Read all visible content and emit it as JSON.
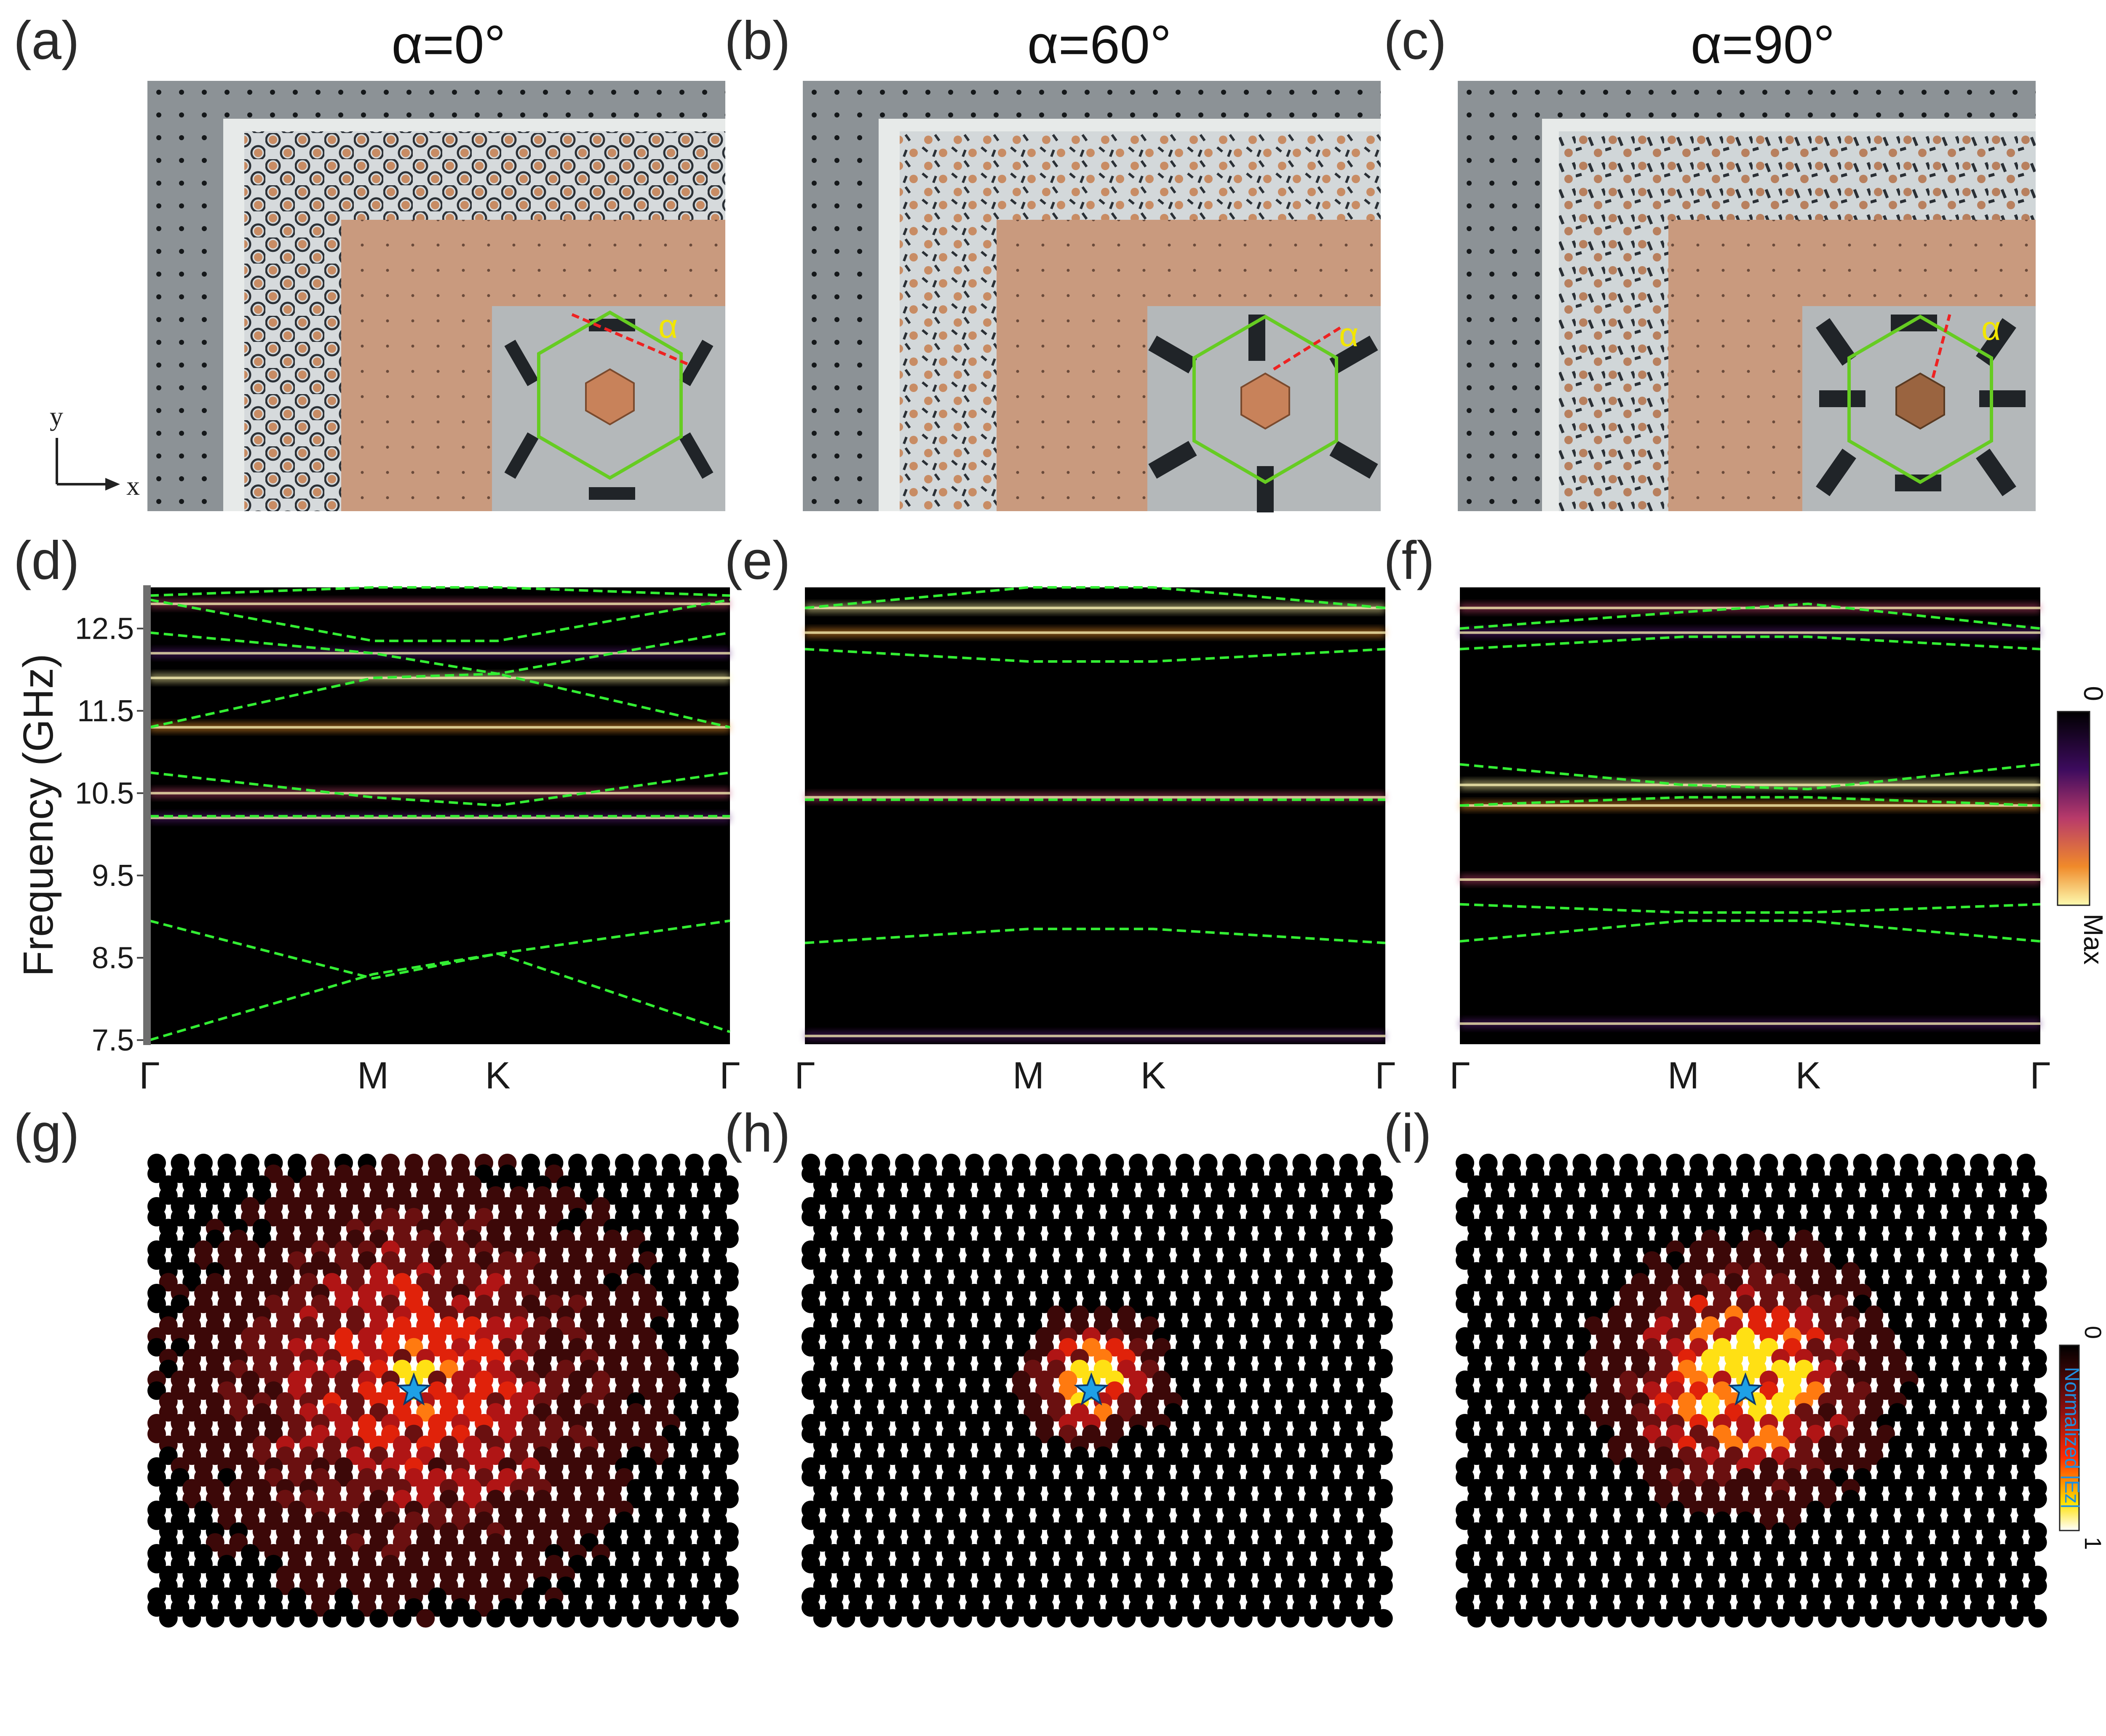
{
  "figure": {
    "panel_labels": [
      "(a)",
      "(b)",
      "(c)",
      "(d)",
      "(e)",
      "(f)",
      "(g)",
      "(h)",
      "(i)"
    ],
    "titles": [
      "α=0°",
      "α=60°",
      "α=90°"
    ],
    "alpha_symbol": "α",
    "axis_labels": {
      "x": "x",
      "y": "y"
    },
    "band_colorbar": {
      "min_label": "0",
      "max_label": "Max"
    },
    "field_colorbar": {
      "min_label": "0",
      "max_label": "1",
      "title": "Normalized |Ez|"
    }
  },
  "colors": {
    "background": "#ffffff",
    "band_background": "#000000",
    "dashed_band": "#33ee33",
    "hexagon": "#66cc22",
    "alpha_label": "#f2e600",
    "alpha_line": "#ee2222",
    "copper": "#c88c64",
    "star": "#1ea0e6"
  },
  "chart_data": [
    {
      "type": "heatmap",
      "panel": "(d)",
      "title": "α=0°",
      "ylabel": "Frequency (GHz)",
      "xlabel": "",
      "x_ticks": [
        "Γ",
        "M",
        "K",
        "Γ"
      ],
      "y_ticks": [
        7.5,
        8.5,
        9.5,
        10.5,
        11.5,
        12.5
      ],
      "ylim": [
        7.45,
        13.0
      ],
      "bright_bands_ghz": [
        10.2,
        10.5,
        11.3,
        11.9,
        12.2,
        12.8
      ],
      "bandgap_ghz": [
        9.0,
        10.2
      ],
      "dashed_bands": [
        {
          "name": "b1",
          "values": [
            7.5,
            8.3,
            8.55,
            7.6
          ]
        },
        {
          "name": "b2",
          "values": [
            8.95,
            8.25,
            8.55,
            8.95
          ]
        },
        {
          "name": "b3",
          "values": [
            10.22,
            10.22,
            10.22,
            10.22
          ]
        },
        {
          "name": "b4",
          "values": [
            10.75,
            10.45,
            10.35,
            10.75
          ]
        },
        {
          "name": "b5",
          "values": [
            11.3,
            11.9,
            11.95,
            11.3
          ]
        },
        {
          "name": "b6",
          "values": [
            12.45,
            12.2,
            11.95,
            12.45
          ]
        },
        {
          "name": "b7",
          "values": [
            12.85,
            12.35,
            12.35,
            12.85
          ]
        },
        {
          "name": "b8",
          "values": [
            12.9,
            13.05,
            13.05,
            12.9
          ]
        }
      ]
    },
    {
      "type": "heatmap",
      "panel": "(e)",
      "title": "α=60°",
      "x_ticks": [
        "Γ",
        "M",
        "K",
        "Γ"
      ],
      "ylim": [
        7.45,
        13.0
      ],
      "bright_bands_ghz": [
        7.55,
        10.45,
        12.45,
        12.75
      ],
      "bandgap_ghz": [
        8.85,
        10.4
      ],
      "dashed_bands": [
        {
          "name": "b1",
          "values": [
            8.68,
            8.85,
            8.85,
            8.68
          ]
        },
        {
          "name": "b2",
          "values": [
            10.42,
            10.42,
            10.42,
            10.42
          ]
        },
        {
          "name": "b3",
          "values": [
            12.25,
            12.1,
            12.1,
            12.25
          ]
        },
        {
          "name": "b4",
          "values": [
            12.75,
            13.0,
            13.0,
            12.75
          ]
        }
      ]
    },
    {
      "type": "heatmap",
      "panel": "(f)",
      "title": "α=90°",
      "x_ticks": [
        "Γ",
        "M",
        "K",
        "Γ"
      ],
      "ylim": [
        7.45,
        13.0
      ],
      "bright_bands_ghz": [
        7.7,
        9.45,
        10.35,
        10.6,
        12.45,
        12.75
      ],
      "bandgap_ghz": [
        9.2,
        10.2
      ],
      "dashed_bands": [
        {
          "name": "b1",
          "values": [
            8.7,
            8.95,
            8.95,
            8.7
          ]
        },
        {
          "name": "b2",
          "values": [
            9.15,
            9.05,
            9.05,
            9.15
          ]
        },
        {
          "name": "b3",
          "values": [
            10.35,
            10.45,
            10.45,
            10.35
          ]
        },
        {
          "name": "b4",
          "values": [
            10.85,
            10.6,
            10.55,
            10.85
          ]
        },
        {
          "name": "b5",
          "values": [
            12.25,
            12.4,
            12.4,
            12.25
          ]
        },
        {
          "name": "b6",
          "values": [
            12.5,
            12.7,
            12.8,
            12.5
          ]
        }
      ]
    },
    {
      "type": "scatter",
      "panel": "(g)",
      "description_value": "normalized |Ez| field map",
      "grid": {
        "cols": 25,
        "rows": 22
      },
      "source_cell": [
        11,
        10
      ],
      "spread": 5.5,
      "intensity": 0.55
    },
    {
      "type": "scatter",
      "panel": "(h)",
      "grid": {
        "cols": 25,
        "rows": 22
      },
      "source_cell": [
        12,
        10
      ],
      "spread": 1.6,
      "intensity": 0.85
    },
    {
      "type": "scatter",
      "panel": "(i)",
      "grid": {
        "cols": 25,
        "rows": 22
      },
      "source_cell": [
        12,
        10
      ],
      "spread": 3.0,
      "intensity": 0.95
    }
  ]
}
